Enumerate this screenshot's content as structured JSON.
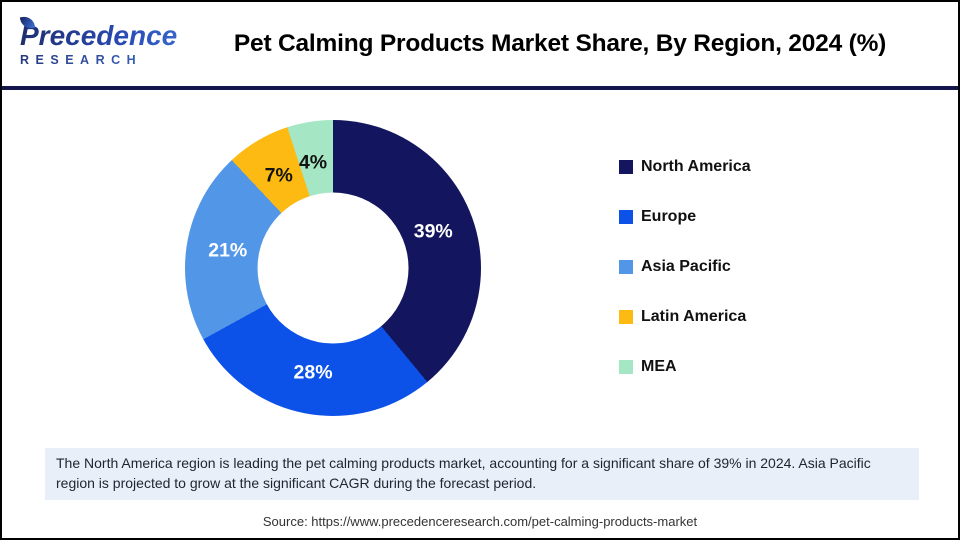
{
  "header": {
    "logo_line1": "Precedence",
    "logo_line2": "RESEARCH",
    "title": "Pet Calming Products Market Share, By Region, 2024 (%)"
  },
  "chart_data": {
    "type": "pie",
    "subtype": "donut",
    "title": "Pet Calming Products Market Share, By Region, 2024 (%)",
    "start_angle_deg": 0,
    "direction": "clockwise",
    "hole_ratio": 0.51,
    "legend_position": "right",
    "categories": [
      "North America",
      "Europe",
      "Asia Pacific",
      "Latin America",
      "MEA"
    ],
    "values": [
      39,
      28,
      21,
      7,
      4
    ],
    "labels": [
      "39%",
      "28%",
      "21%",
      "7%",
      "4%"
    ],
    "colors": [
      "#13155E",
      "#0D52E8",
      "#5296E8",
      "#FCBA12",
      "#A5E7C4"
    ],
    "label_colors": [
      "#FFFFFF",
      "#FFFFFF",
      "#FFFFFF",
      "#131313",
      "#131313"
    ]
  },
  "note": {
    "text": "The North America region is leading the pet calming products market, accounting for a significant share of 39% in 2024. Asia Pacific region is projected to grow at the significant CAGR during the forecast period."
  },
  "source": {
    "text": "Source: https://www.precedenceresearch.com/pet-calming-products-market"
  }
}
